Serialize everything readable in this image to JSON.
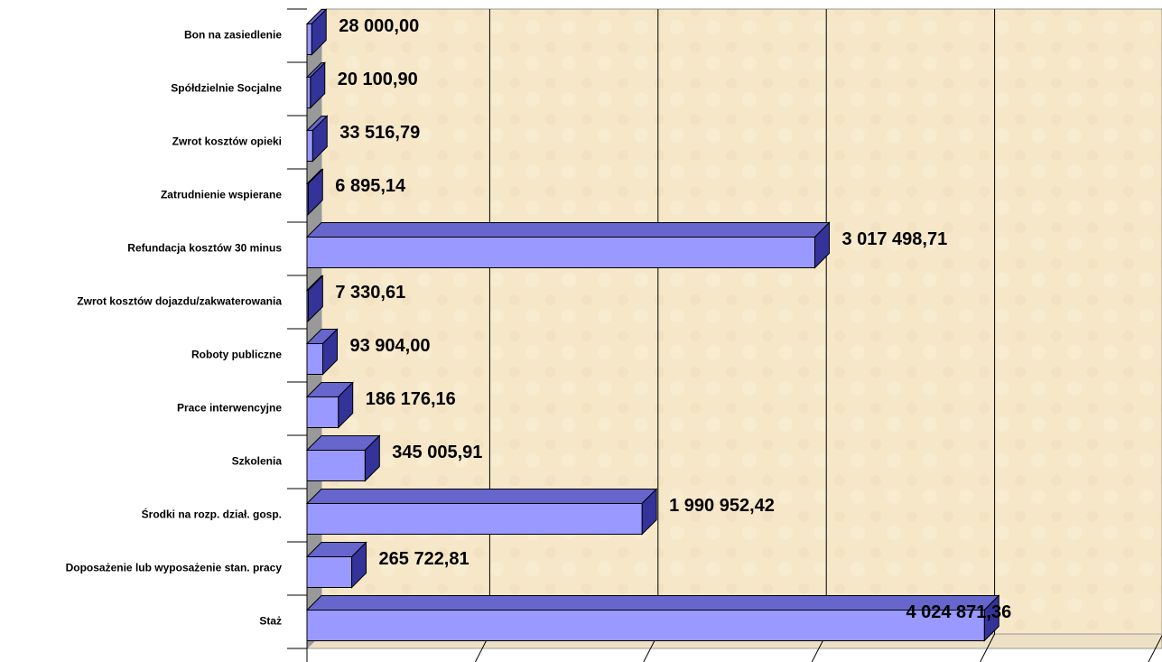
{
  "chart_data": {
    "type": "bar3d_horizontal",
    "categories": [
      "Bon na zasiedlenie",
      "Spółdzielnie Socjalne",
      "Zwrot kosztów opieki",
      "Zatrudnienie wspierane",
      "Refundacja kosztów 30 minus",
      "Zwrot kosztów dojazdu/zakwaterowania",
      "Roboty publiczne",
      "Prace interwencyjne",
      "Szkolenia",
      "Środki na rozp. dział. gosp.",
      "Doposażenie lub wyposażenie stan. pracy",
      "Staż"
    ],
    "values": [
      28000.0,
      20100.9,
      33516.79,
      6895.14,
      3017498.71,
      7330.61,
      93904.0,
      186176.16,
      345005.91,
      1990952.42,
      265722.81,
      4024871.36
    ],
    "value_labels": [
      "28 000,00",
      "20 100,90",
      "33 516,79",
      "6 895,14",
      "3 017 498,71",
      "7 330,61",
      "93 904,00",
      "186 176,16",
      "345 005,91",
      "1 990 952,42",
      "265 722,81",
      "4 024 871,36"
    ],
    "color": "#9999ff",
    "xlim": [
      0,
      5000000
    ],
    "xticks": [
      0,
      1000000,
      2000000,
      3000000,
      4000000,
      5000000
    ],
    "grid": true
  }
}
